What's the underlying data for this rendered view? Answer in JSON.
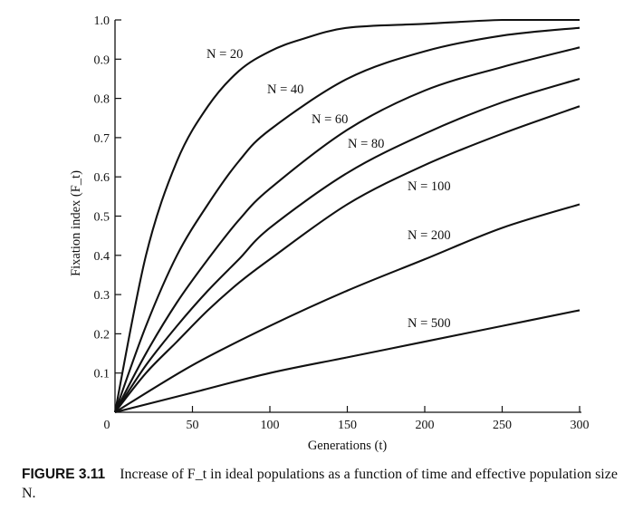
{
  "chart_data": {
    "type": "line",
    "xlabel": "Generations (t)",
    "ylabel": "Fixation index (F_t)",
    "xlim": [
      0,
      300
    ],
    "ylim": [
      0,
      1.0
    ],
    "x_ticks": [
      0,
      50,
      100,
      150,
      200,
      250,
      300
    ],
    "x_tick_labels": [
      "0",
      "50",
      "100",
      "150",
      "200",
      "250",
      "300"
    ],
    "y_ticks": [
      0.1,
      0.2,
      0.3,
      0.4,
      0.5,
      0.6,
      0.7,
      0.8,
      0.9,
      1.0
    ],
    "y_tick_labels": [
      "0.1",
      "0.2",
      "0.3",
      "0.4",
      "0.5",
      "0.6",
      "0.7",
      "0.8",
      "0.9",
      "1.0"
    ],
    "grid": false,
    "legend": "none; curves labeled directly",
    "series": [
      {
        "name": "N = 20",
        "N": 20,
        "x": [
          0,
          20,
          40,
          60,
          80,
          100,
          120,
          150,
          200,
          250,
          300
        ],
        "values": [
          0,
          0.4,
          0.64,
          0.78,
          0.87,
          0.92,
          0.95,
          0.98,
          0.99,
          1.0,
          1.0
        ]
      },
      {
        "name": "N = 40",
        "N": 40,
        "x": [
          0,
          20,
          40,
          60,
          80,
          100,
          150,
          200,
          250,
          300
        ],
        "values": [
          0,
          0.22,
          0.4,
          0.53,
          0.64,
          0.72,
          0.85,
          0.92,
          0.96,
          0.98
        ]
      },
      {
        "name": "N = 60",
        "N": 60,
        "x": [
          0,
          20,
          40,
          60,
          80,
          100,
          150,
          200,
          250,
          300
        ],
        "values": [
          0,
          0.15,
          0.28,
          0.39,
          0.49,
          0.57,
          0.72,
          0.82,
          0.88,
          0.93
        ]
      },
      {
        "name": "N = 80",
        "N": 80,
        "x": [
          0,
          20,
          40,
          60,
          80,
          100,
          150,
          200,
          250,
          300
        ],
        "values": [
          0,
          0.12,
          0.22,
          0.31,
          0.39,
          0.47,
          0.61,
          0.71,
          0.79,
          0.85
        ]
      },
      {
        "name": "N = 100",
        "N": 100,
        "x": [
          0,
          20,
          40,
          60,
          80,
          100,
          150,
          200,
          250,
          300
        ],
        "values": [
          0,
          0.1,
          0.18,
          0.26,
          0.33,
          0.39,
          0.53,
          0.63,
          0.71,
          0.78
        ]
      },
      {
        "name": "N = 200",
        "N": 200,
        "x": [
          0,
          50,
          100,
          150,
          200,
          250,
          300
        ],
        "values": [
          0,
          0.12,
          0.22,
          0.31,
          0.39,
          0.47,
          0.53
        ]
      },
      {
        "name": "N = 500",
        "N": 500,
        "x": [
          0,
          50,
          100,
          150,
          200,
          250,
          300
        ],
        "values": [
          0,
          0.05,
          0.1,
          0.14,
          0.18,
          0.22,
          0.26
        ]
      }
    ]
  },
  "caption": {
    "figure_number": "FIGURE 3.11",
    "text": "Increase of F_t in ideal populations as a function of time and effective population size N."
  }
}
